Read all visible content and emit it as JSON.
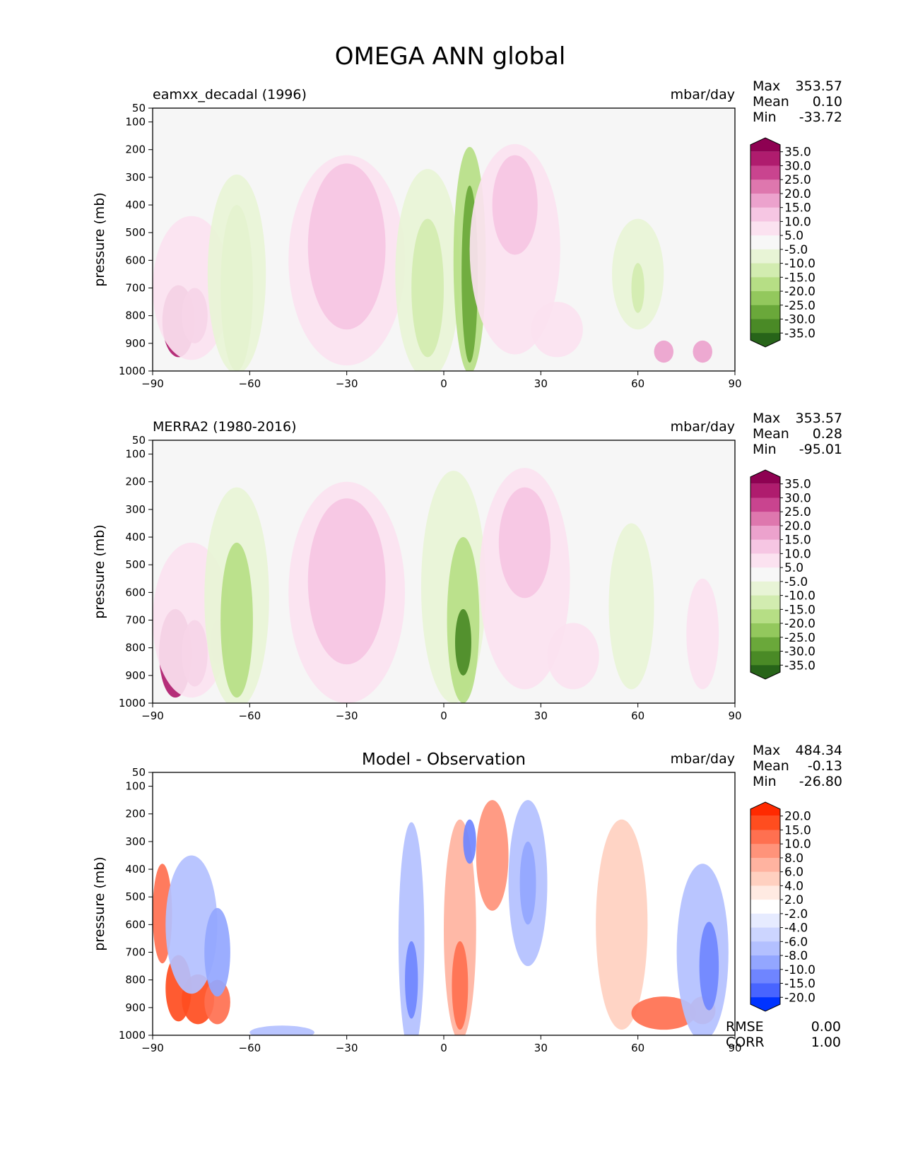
{
  "figure_title": "OMEGA ANN global",
  "chart_data": [
    {
      "type": "contour",
      "panel": "test",
      "left_title": "eamxx_decadal (1996)",
      "center_title": "",
      "units": "mbar/day",
      "ylabel": "pressure (mb)",
      "xlabel": "",
      "x_ticks": [
        -90,
        -60,
        -30,
        0,
        30,
        60,
        90
      ],
      "x_tick_labels": [
        "−90",
        "−60",
        "−30",
        "0",
        "30",
        "60",
        "90"
      ],
      "y_ticks": [
        50,
        100,
        200,
        300,
        400,
        500,
        600,
        700,
        800,
        900,
        1000
      ],
      "y_tick_labels": [
        "50",
        "100",
        "200",
        "300",
        "400",
        "500",
        "600",
        "700",
        "800",
        "900",
        "1000"
      ],
      "xlim": [
        -90,
        90
      ],
      "ylim": [
        1000,
        50
      ],
      "stats": [
        {
          "label": "Max",
          "value": "353.57"
        },
        {
          "label": "Mean",
          "value": "0.10"
        },
        {
          "label": "Min",
          "value": "-33.72"
        }
      ],
      "colorbar_labels": [
        "35.0",
        "30.0",
        "25.0",
        "20.0",
        "15.0",
        "10.0",
        "5.0",
        "-5.0",
        "-10.0",
        "-15.0",
        "-20.0",
        "-25.0",
        "-30.0",
        "-35.0"
      ],
      "colorbar_colors": [
        "#8e0152",
        "#af1c6e",
        "#c9448f",
        "#de77ae",
        "#eca2cd",
        "#f6c6e3",
        "#fbe2f0",
        "#f7f7f7",
        "#e8f4d6",
        "#d2ecb0",
        "#b6de85",
        "#93c85d",
        "#6aa83a",
        "#4a8a26",
        "#276419"
      ],
      "blobs": [
        {
          "lat": -82,
          "p": 820,
          "rx": 5,
          "ry": 130,
          "level": 1
        },
        {
          "lat": -77,
          "p": 800,
          "rx": 4,
          "ry": 100,
          "level": 2
        },
        {
          "lat": -78,
          "p": 700,
          "rx": 12,
          "ry": 260,
          "level": 6
        },
        {
          "lat": -64,
          "p": 700,
          "rx": 5,
          "ry": 300,
          "level": 10
        },
        {
          "lat": -64,
          "p": 650,
          "rx": 9,
          "ry": 360,
          "level": 8
        },
        {
          "lat": -30,
          "p": 600,
          "rx": 18,
          "ry": 380,
          "level": 6
        },
        {
          "lat": -30,
          "p": 550,
          "rx": 12,
          "ry": 300,
          "level": 5
        },
        {
          "lat": -5,
          "p": 650,
          "rx": 10,
          "ry": 380,
          "level": 8
        },
        {
          "lat": -5,
          "p": 700,
          "rx": 5,
          "ry": 250,
          "level": 9
        },
        {
          "lat": 8,
          "p": 600,
          "rx": 5,
          "ry": 410,
          "level": 10
        },
        {
          "lat": 8,
          "p": 650,
          "rx": 2.5,
          "ry": 320,
          "level": 12
        },
        {
          "lat": 22,
          "p": 560,
          "rx": 14,
          "ry": 380,
          "level": 6
        },
        {
          "lat": 22,
          "p": 400,
          "rx": 7,
          "ry": 180,
          "level": 5
        },
        {
          "lat": 35,
          "p": 850,
          "rx": 8,
          "ry": 100,
          "level": 6
        },
        {
          "lat": 60,
          "p": 650,
          "rx": 8,
          "ry": 200,
          "level": 8
        },
        {
          "lat": 60,
          "p": 700,
          "rx": 2,
          "ry": 90,
          "level": 9
        },
        {
          "lat": 68,
          "p": 930,
          "rx": 3,
          "ry": 40,
          "level": 4
        },
        {
          "lat": 80,
          "p": 930,
          "rx": 3,
          "ry": 40,
          "level": 4
        }
      ]
    },
    {
      "type": "contour",
      "panel": "reference",
      "left_title": "MERRA2 (1980-2016)",
      "center_title": "",
      "units": "mbar/day",
      "ylabel": "pressure (mb)",
      "xlabel": "",
      "x_ticks": [
        -90,
        -60,
        -30,
        0,
        30,
        60,
        90
      ],
      "x_tick_labels": [
        "−90",
        "−60",
        "−30",
        "0",
        "30",
        "60",
        "90"
      ],
      "y_ticks": [
        50,
        100,
        200,
        300,
        400,
        500,
        600,
        700,
        800,
        900,
        1000
      ],
      "y_tick_labels": [
        "50",
        "100",
        "200",
        "300",
        "400",
        "500",
        "600",
        "700",
        "800",
        "900",
        "1000"
      ],
      "xlim": [
        -90,
        90
      ],
      "ylim": [
        1000,
        50
      ],
      "stats": [
        {
          "label": "Max",
          "value": "353.57"
        },
        {
          "label": "Mean",
          "value": "0.28"
        },
        {
          "label": "Min",
          "value": "-95.01"
        }
      ],
      "colorbar_labels": [
        "35.0",
        "30.0",
        "25.0",
        "20.0",
        "15.0",
        "10.0",
        "5.0",
        "-5.0",
        "-10.0",
        "-15.0",
        "-20.0",
        "-25.0",
        "-30.0",
        "-35.0"
      ],
      "colorbar_colors": [
        "#8e0152",
        "#af1c6e",
        "#c9448f",
        "#de77ae",
        "#eca2cd",
        "#f6c6e3",
        "#fbe2f0",
        "#f7f7f7",
        "#e8f4d6",
        "#d2ecb0",
        "#b6de85",
        "#93c85d",
        "#6aa83a",
        "#4a8a26",
        "#276419"
      ],
      "blobs": [
        {
          "lat": -83,
          "p": 820,
          "rx": 5,
          "ry": 160,
          "level": 1
        },
        {
          "lat": -77,
          "p": 820,
          "rx": 4,
          "ry": 120,
          "level": 2
        },
        {
          "lat": -70,
          "p": 780,
          "rx": 2,
          "ry": 80,
          "level": 2
        },
        {
          "lat": -78,
          "p": 700,
          "rx": 12,
          "ry": 280,
          "level": 6
        },
        {
          "lat": -64,
          "p": 620,
          "rx": 10,
          "ry": 400,
          "level": 8
        },
        {
          "lat": -64,
          "p": 700,
          "rx": 5,
          "ry": 280,
          "level": 10
        },
        {
          "lat": -30,
          "p": 600,
          "rx": 18,
          "ry": 400,
          "level": 6
        },
        {
          "lat": -30,
          "p": 560,
          "rx": 12,
          "ry": 300,
          "level": 5
        },
        {
          "lat": 3,
          "p": 580,
          "rx": 10,
          "ry": 420,
          "level": 8
        },
        {
          "lat": 6,
          "p": 700,
          "rx": 5,
          "ry": 300,
          "level": 10
        },
        {
          "lat": 6,
          "p": 780,
          "rx": 2.5,
          "ry": 120,
          "level": 13
        },
        {
          "lat": 25,
          "p": 550,
          "rx": 14,
          "ry": 400,
          "level": 6
        },
        {
          "lat": 25,
          "p": 420,
          "rx": 8,
          "ry": 200,
          "level": 5
        },
        {
          "lat": 40,
          "p": 830,
          "rx": 8,
          "ry": 120,
          "level": 6
        },
        {
          "lat": 58,
          "p": 650,
          "rx": 7,
          "ry": 300,
          "level": 8
        },
        {
          "lat": 80,
          "p": 750,
          "rx": 5,
          "ry": 200,
          "level": 6
        }
      ]
    },
    {
      "type": "contour",
      "panel": "difference",
      "left_title": "",
      "center_title": "Model - Observation",
      "units": "mbar/day",
      "ylabel": "pressure (mb)",
      "xlabel": "",
      "x_ticks": [
        -90,
        -60,
        -30,
        0,
        30,
        60,
        90
      ],
      "x_tick_labels": [
        "−90",
        "−60",
        "−30",
        "0",
        "30",
        "60",
        "90"
      ],
      "y_ticks": [
        50,
        100,
        200,
        300,
        400,
        500,
        600,
        700,
        800,
        900,
        1000
      ],
      "y_tick_labels": [
        "50",
        "100",
        "200",
        "300",
        "400",
        "500",
        "600",
        "700",
        "800",
        "900",
        "1000"
      ],
      "xlim": [
        -90,
        90
      ],
      "ylim": [
        1000,
        50
      ],
      "stats": [
        {
          "label": "Max",
          "value": "484.34"
        },
        {
          "label": "Mean",
          "value": "-0.13"
        },
        {
          "label": "Min",
          "value": "-26.80"
        }
      ],
      "extra_stats": [
        {
          "label": "RMSE",
          "value": "0.00"
        },
        {
          "label": "CORR",
          "value": "1.00"
        }
      ],
      "colorbar_labels": [
        "20.0",
        "15.0",
        "10.0",
        "8.0",
        "6.0",
        "4.0",
        "2.0",
        "-2.0",
        "-4.0",
        "-6.0",
        "-8.0",
        "-10.0",
        "-15.0",
        "-20.0"
      ],
      "colorbar_colors": [
        "#ff2a00",
        "#ff4d1f",
        "#ff7050",
        "#ff937a",
        "#ffb3a0",
        "#ffd0c0",
        "#ffeae2",
        "#ffffff",
        "#e6ebff",
        "#ccd5ff",
        "#b3c0ff",
        "#93a6ff",
        "#6f85ff",
        "#4864ff",
        "#0033ff"
      ],
      "blobs": [
        {
          "lat": -87,
          "p": 560,
          "rx": 3,
          "ry": 180,
          "level": 2
        },
        {
          "lat": -82,
          "p": 830,
          "rx": 4,
          "ry": 120,
          "level": 1
        },
        {
          "lat": -76,
          "p": 870,
          "rx": 5,
          "ry": 90,
          "level": 1
        },
        {
          "lat": -70,
          "p": 880,
          "rx": 4,
          "ry": 80,
          "level": 2
        },
        {
          "lat": -78,
          "p": 600,
          "rx": 8,
          "ry": 250,
          "level": 10
        },
        {
          "lat": -70,
          "p": 700,
          "rx": 4,
          "ry": 160,
          "level": 11
        },
        {
          "lat": -50,
          "p": 990,
          "rx": 10,
          "ry": 25,
          "level": 10
        },
        {
          "lat": -10,
          "p": 650,
          "rx": 4,
          "ry": 420,
          "level": 10
        },
        {
          "lat": -10,
          "p": 800,
          "rx": 2,
          "ry": 140,
          "level": 12
        },
        {
          "lat": 5,
          "p": 620,
          "rx": 5,
          "ry": 400,
          "level": 4
        },
        {
          "lat": 5,
          "p": 820,
          "rx": 2.5,
          "ry": 160,
          "level": 2
        },
        {
          "lat": 8,
          "p": 300,
          "rx": 2,
          "ry": 80,
          "level": 12
        },
        {
          "lat": 15,
          "p": 350,
          "rx": 5,
          "ry": 200,
          "level": 3
        },
        {
          "lat": 26,
          "p": 450,
          "rx": 6,
          "ry": 300,
          "level": 10
        },
        {
          "lat": 26,
          "p": 450,
          "rx": 2.5,
          "ry": 150,
          "level": 11
        },
        {
          "lat": 55,
          "p": 600,
          "rx": 8,
          "ry": 380,
          "level": 5
        },
        {
          "lat": 68,
          "p": 920,
          "rx": 10,
          "ry": 60,
          "level": 2
        },
        {
          "lat": 80,
          "p": 910,
          "rx": 4,
          "ry": 50,
          "level": 2
        },
        {
          "lat": 80,
          "p": 700,
          "rx": 8,
          "ry": 320,
          "level": 10
        },
        {
          "lat": 82,
          "p": 750,
          "rx": 3,
          "ry": 160,
          "level": 12
        }
      ]
    }
  ]
}
